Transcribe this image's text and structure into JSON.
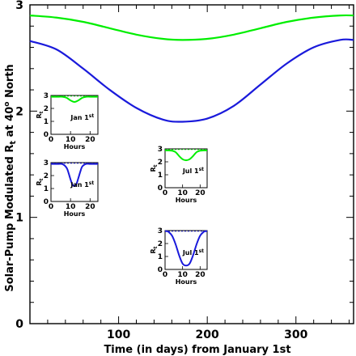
{
  "chart_data": {
    "type": "line",
    "xlabel": "Time (in days) from January 1st",
    "ylabel_prefix": "Solar-Pump Modulated R",
    "ylabel_sub": "t",
    "ylabel_mid": " at 40",
    "ylabel_sup": "o",
    "ylabel_suffix": " North",
    "xlim": [
      0,
      365
    ],
    "ylim": [
      0,
      3
    ],
    "xticks": [
      100,
      200,
      300
    ],
    "yticks": [
      0,
      1,
      2,
      3
    ],
    "grid": false,
    "legend": "none",
    "series": [
      {
        "color": "#00ee00",
        "x": [
          0,
          30,
          60,
          90,
          120,
          150,
          172,
          200,
          230,
          260,
          290,
          320,
          350,
          365
        ],
        "y": [
          2.9,
          2.88,
          2.84,
          2.78,
          2.72,
          2.68,
          2.67,
          2.68,
          2.72,
          2.78,
          2.84,
          2.88,
          2.9,
          2.9
        ]
      },
      {
        "color": "#1a1adb",
        "x": [
          0,
          30,
          60,
          90,
          120,
          150,
          172,
          200,
          230,
          260,
          290,
          320,
          350,
          365
        ],
        "y": [
          2.66,
          2.58,
          2.4,
          2.2,
          2.03,
          1.92,
          1.9,
          1.93,
          2.05,
          2.25,
          2.45,
          2.6,
          2.67,
          2.67
        ]
      }
    ],
    "insets": [
      {
        "color": "#00ee00",
        "date_label": "Jan 1",
        "date_sup": "st",
        "ylabel": "R",
        "ylabel_sub": "t",
        "xlabel": "Hours",
        "xlim": [
          0,
          24
        ],
        "ylim": [
          0,
          3
        ],
        "xticks": [
          0,
          10,
          20
        ],
        "yticks": [
          0,
          1,
          2,
          3
        ],
        "x": [
          0,
          2,
          4,
          6,
          8,
          10,
          12,
          14,
          16,
          18,
          20,
          22,
          24
        ],
        "y": [
          2.9,
          2.9,
          2.9,
          2.9,
          2.82,
          2.62,
          2.5,
          2.62,
          2.82,
          2.9,
          2.9,
          2.9,
          2.9
        ]
      },
      {
        "color": "#1a1adb",
        "date_label": "Jan 1",
        "date_sup": "st",
        "ylabel": "R",
        "ylabel_sub": "t",
        "xlabel": "Hours",
        "xlim": [
          0,
          24
        ],
        "ylim": [
          0,
          3
        ],
        "xticks": [
          0,
          10,
          20
        ],
        "yticks": [
          0,
          1,
          2,
          3
        ],
        "x": [
          0,
          2,
          4,
          6,
          8,
          9,
          10,
          11,
          12,
          13,
          14,
          15,
          16,
          18,
          20,
          22,
          24
        ],
        "y": [
          2.9,
          2.9,
          2.9,
          2.88,
          2.6,
          2.2,
          1.7,
          1.3,
          1.2,
          1.35,
          1.8,
          2.3,
          2.7,
          2.9,
          2.9,
          2.9,
          2.9
        ]
      },
      {
        "color": "#00ee00",
        "date_label": "Jul 1",
        "date_sup": "st",
        "ylabel": "R",
        "ylabel_sub": "t",
        "xlabel": "Hours",
        "xlim": [
          0,
          24
        ],
        "ylim": [
          0,
          3
        ],
        "xticks": [
          0,
          10,
          20
        ],
        "yticks": [
          0,
          1,
          2,
          3
        ],
        "x": [
          0,
          2,
          4,
          6,
          8,
          10,
          12,
          14,
          16,
          18,
          20,
          22,
          24
        ],
        "y": [
          2.88,
          2.88,
          2.86,
          2.75,
          2.45,
          2.2,
          2.12,
          2.2,
          2.45,
          2.75,
          2.86,
          2.88,
          2.88
        ]
      },
      {
        "color": "#1a1adb",
        "date_label": "Jul 1",
        "date_sup": "st",
        "ylabel": "R",
        "ylabel_sub": "t",
        "xlabel": "Hours",
        "xlim": [
          0,
          24
        ],
        "ylim": [
          0,
          3
        ],
        "xticks": [
          0,
          10,
          20
        ],
        "yticks": [
          0,
          1,
          2,
          3
        ],
        "x": [
          0,
          1,
          2,
          4,
          6,
          8,
          10,
          12,
          14,
          16,
          18,
          20,
          22,
          23,
          24
        ],
        "y": [
          2.95,
          2.95,
          2.9,
          2.6,
          1.95,
          1.1,
          0.45,
          0.3,
          0.45,
          1.1,
          1.95,
          2.6,
          2.9,
          2.95,
          2.95
        ]
      }
    ]
  }
}
